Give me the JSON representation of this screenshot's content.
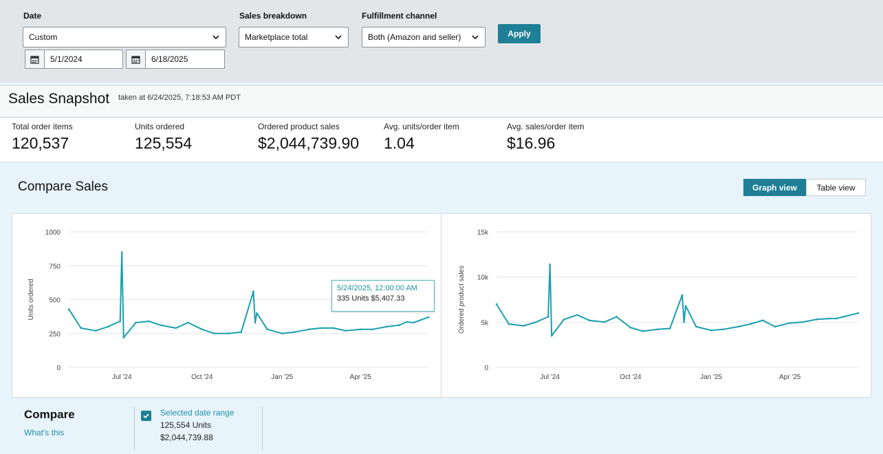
{
  "filters": {
    "date": {
      "label": "Date",
      "value": "Custom",
      "start": "5/1/2024",
      "end": "6/18/2025"
    },
    "breakdown": {
      "label": "Sales breakdown",
      "value": "Marketplace total"
    },
    "channel": {
      "label": "Fulfillment channel",
      "value": "Both (Amazon and seller)"
    },
    "apply_label": "Apply"
  },
  "snapshot": {
    "title": "Sales Snapshot",
    "taken": "taken at 6/24/2025, 7:18:53 AM PDT",
    "metrics": [
      {
        "label": "Total order items",
        "value": "120,537"
      },
      {
        "label": "Units ordered",
        "value": "125,554"
      },
      {
        "label": "Ordered product sales",
        "value": "$2,044,739.90"
      },
      {
        "label": "Avg. units/order item",
        "value": "1.04"
      },
      {
        "label": "Avg. sales/order item",
        "value": "$16.96"
      }
    ]
  },
  "compare_sales": {
    "title": "Compare Sales",
    "graph_view": "Graph view",
    "table_view": "Table view",
    "active_view": "Graph view"
  },
  "tooltip": {
    "date": "5/24/2025, 12:00:00 AM",
    "detail": "335 Units $5,407.33"
  },
  "legend": {
    "title": "Compare",
    "whats_this": "What's this",
    "series_name": "Selected date range",
    "units": "125,554 Units",
    "sales": "$2,044,739.88",
    "checked": true
  },
  "colors": {
    "accent": "#1f7f96",
    "line": "#1a9fb0",
    "filter_bg": "#e3e6e9",
    "section_bg": "#e8f4fb"
  },
  "chart_data": [
    {
      "type": "line",
      "ylabel": "Units ordered",
      "xlabel": "",
      "ylim": [
        0,
        1000
      ],
      "yticks": [
        0,
        250,
        500,
        750,
        1000
      ],
      "xticks": [
        "Jul '24",
        "Oct '24",
        "Jan '25",
        "Apr '25"
      ],
      "x_range": [
        "2024-05-01",
        "2025-06-18"
      ],
      "grid": true,
      "series": [
        {
          "x": [
            "2024-05-01",
            "2024-05-15",
            "2024-06-01",
            "2024-06-15",
            "2024-06-29",
            "2024-07-01",
            "2024-07-03",
            "2024-07-17",
            "2024-08-01",
            "2024-08-15",
            "2024-09-01",
            "2024-09-15",
            "2024-10-01",
            "2024-10-15",
            "2024-11-01",
            "2024-11-15",
            "2024-11-29",
            "2024-12-01",
            "2024-12-03",
            "2024-12-15",
            "2025-01-01",
            "2025-01-15",
            "2025-02-01",
            "2025-02-15",
            "2025-03-01",
            "2025-03-15",
            "2025-04-01",
            "2025-04-15",
            "2025-05-01",
            "2025-05-15",
            "2025-05-24",
            "2025-06-01",
            "2025-06-18"
          ],
          "values": [
            430,
            290,
            270,
            300,
            340,
            850,
            220,
            330,
            340,
            310,
            290,
            330,
            280,
            250,
            250,
            260,
            560,
            330,
            400,
            280,
            250,
            260,
            280,
            290,
            290,
            270,
            280,
            280,
            300,
            310,
            335,
            330,
            370
          ]
        }
      ]
    },
    {
      "type": "line",
      "ylabel": "Ordered product sales",
      "xlabel": "",
      "ylim": [
        0,
        15000
      ],
      "yticks": [
        0,
        5000,
        10000,
        15000
      ],
      "yticklabels": [
        "0",
        "5k",
        "10k",
        "15k"
      ],
      "xticks": [
        "Jul '24",
        "Oct '24",
        "Jan '25",
        "Apr '25"
      ],
      "x_range": [
        "2024-05-01",
        "2025-06-18"
      ],
      "grid": true,
      "series": [
        {
          "x": [
            "2024-05-01",
            "2024-05-15",
            "2024-06-01",
            "2024-06-15",
            "2024-06-29",
            "2024-07-01",
            "2024-07-03",
            "2024-07-17",
            "2024-08-01",
            "2024-08-15",
            "2024-09-01",
            "2024-09-15",
            "2024-10-01",
            "2024-10-15",
            "2024-11-01",
            "2024-11-15",
            "2024-11-29",
            "2024-12-01",
            "2024-12-03",
            "2024-12-15",
            "2025-01-01",
            "2025-01-15",
            "2025-02-01",
            "2025-02-15",
            "2025-03-01",
            "2025-03-15",
            "2025-04-01",
            "2025-04-15",
            "2025-05-01",
            "2025-05-15",
            "2025-05-24",
            "2025-06-01",
            "2025-06-18"
          ],
          "values": [
            7000,
            4800,
            4600,
            5000,
            5600,
            11400,
            3500,
            5300,
            5800,
            5200,
            5000,
            5600,
            4400,
            4000,
            4200,
            4300,
            8000,
            5000,
            6800,
            4500,
            4100,
            4200,
            4500,
            4800,
            5200,
            4500,
            4900,
            5000,
            5300,
            5400,
            5407,
            5600,
            6000
          ]
        }
      ]
    }
  ]
}
